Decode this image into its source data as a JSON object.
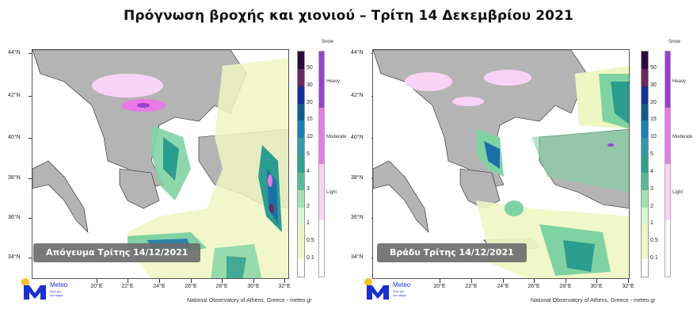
{
  "title": "Πρόγνωση βροχής και χιονιού – Τρίτη 14 Δεκεμβρίου 2021",
  "colors": {
    "land": "#b4b4b4",
    "sea": "#ffffff",
    "rain_light": "#eef6c2",
    "rain_mid": "#7fd3a3",
    "rain_teal": "#2a9d8f",
    "rain_blue": "#1c6fa8",
    "snow_light": "#f9d3f5",
    "snow_moderate": "#e879e6",
    "snow_heavy": "#9b3fd1",
    "caption_bg": "#6e6e6e",
    "logo_blue": "#1a2fd6",
    "logo_yellow": "#f7c21a"
  },
  "axes": {
    "lat_labels": [
      "44°N",
      "42°N",
      "40°N",
      "38°N",
      "36°N",
      "34°N"
    ],
    "lon_labels": [
      "20°E",
      "22°E",
      "24°E",
      "26°E",
      "28°E",
      "30°E",
      "32°E"
    ]
  },
  "rain_scale": {
    "labels": [
      "50",
      "30",
      "20",
      "15",
      "10",
      "5",
      "4",
      "3",
      "2",
      "1",
      "0.5",
      "0.1"
    ],
    "colors": [
      "#2b0b3f",
      "#6b2a5e",
      "#14309a",
      "#0f5b8f",
      "#1a7fb8",
      "#3398ad",
      "#2fa08a",
      "#56bc98",
      "#9fe3b3",
      "#d8f7cf",
      "#eef6c2",
      "#f1f7c8",
      "#ffffff"
    ]
  },
  "snow_scale": {
    "title": "Snow",
    "labels": [
      "Heavy",
      "Moderate",
      "Light"
    ],
    "colors": [
      "#9b3fd1",
      "#e879e6",
      "#f9d3f5",
      "#ffffff"
    ]
  },
  "panels": [
    {
      "caption": "Απόγευμα Τρίτης 14/12/2021"
    },
    {
      "caption": "Βράδυ Τρίτης 14/12/2021"
    }
  ],
  "logo": {
    "name": "Meteo",
    "tagline_1": "Όλα για",
    "tagline_2": "τον καιρό"
  },
  "footer": "National Observatory of Athens, Greece - meteo.gr"
}
